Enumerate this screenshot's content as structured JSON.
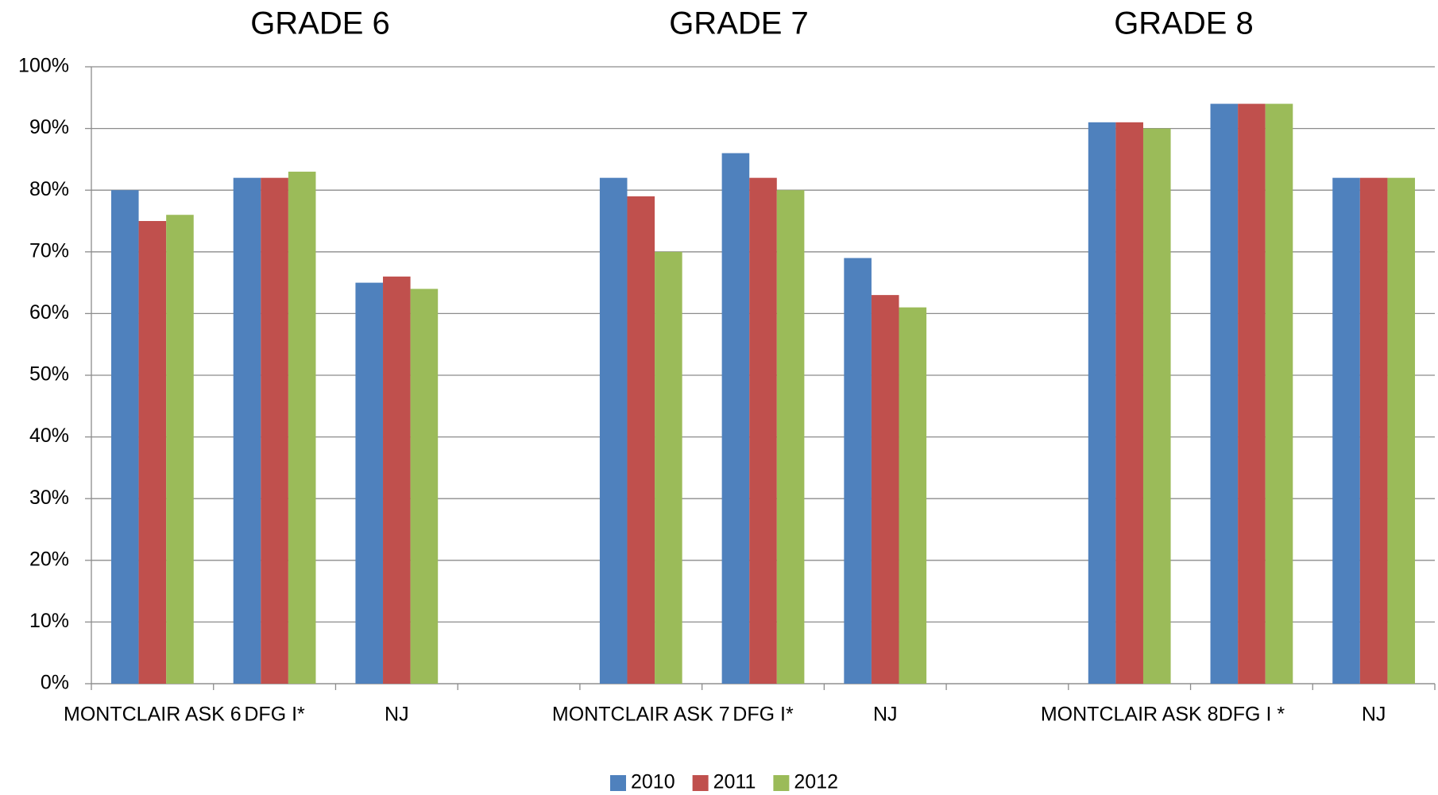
{
  "chart_data": {
    "type": "bar",
    "annotations": [
      "GRADE 6",
      "GRADE 7",
      "GRADE 8"
    ],
    "categories": [
      "MONTCLAIR ASK 6",
      "DFG I*",
      "NJ",
      null,
      "MONTCLAIR ASK 7",
      "DFG I*",
      "NJ",
      null,
      "MONTCLAIR ASK 8",
      "DFG I *",
      "NJ"
    ],
    "series": [
      {
        "name": "2010",
        "color": "#4f81bd",
        "values": [
          80,
          82,
          65,
          null,
          82,
          86,
          69,
          null,
          91,
          94,
          82
        ]
      },
      {
        "name": "2011",
        "color": "#c0504d",
        "values": [
          75,
          82,
          66,
          null,
          79,
          82,
          63,
          null,
          91,
          94,
          82
        ]
      },
      {
        "name": "2012",
        "color": "#9bbb59",
        "values": [
          76,
          83,
          64,
          null,
          70,
          80,
          61,
          null,
          90,
          94,
          82
        ]
      }
    ],
    "ylim": [
      0,
      100
    ],
    "yticks": [
      {
        "value": 0,
        "label": "0%"
      },
      {
        "value": 10,
        "label": "10%"
      },
      {
        "value": 20,
        "label": "20%"
      },
      {
        "value": 30,
        "label": "30%"
      },
      {
        "value": 40,
        "label": "40%"
      },
      {
        "value": 50,
        "label": "50%"
      },
      {
        "value": 60,
        "label": "60%"
      },
      {
        "value": 70,
        "label": "70%"
      },
      {
        "value": 80,
        "label": "80%"
      },
      {
        "value": 90,
        "label": "90%"
      },
      {
        "value": 100,
        "label": "100%"
      }
    ],
    "grid": true,
    "legend": "bottom"
  }
}
